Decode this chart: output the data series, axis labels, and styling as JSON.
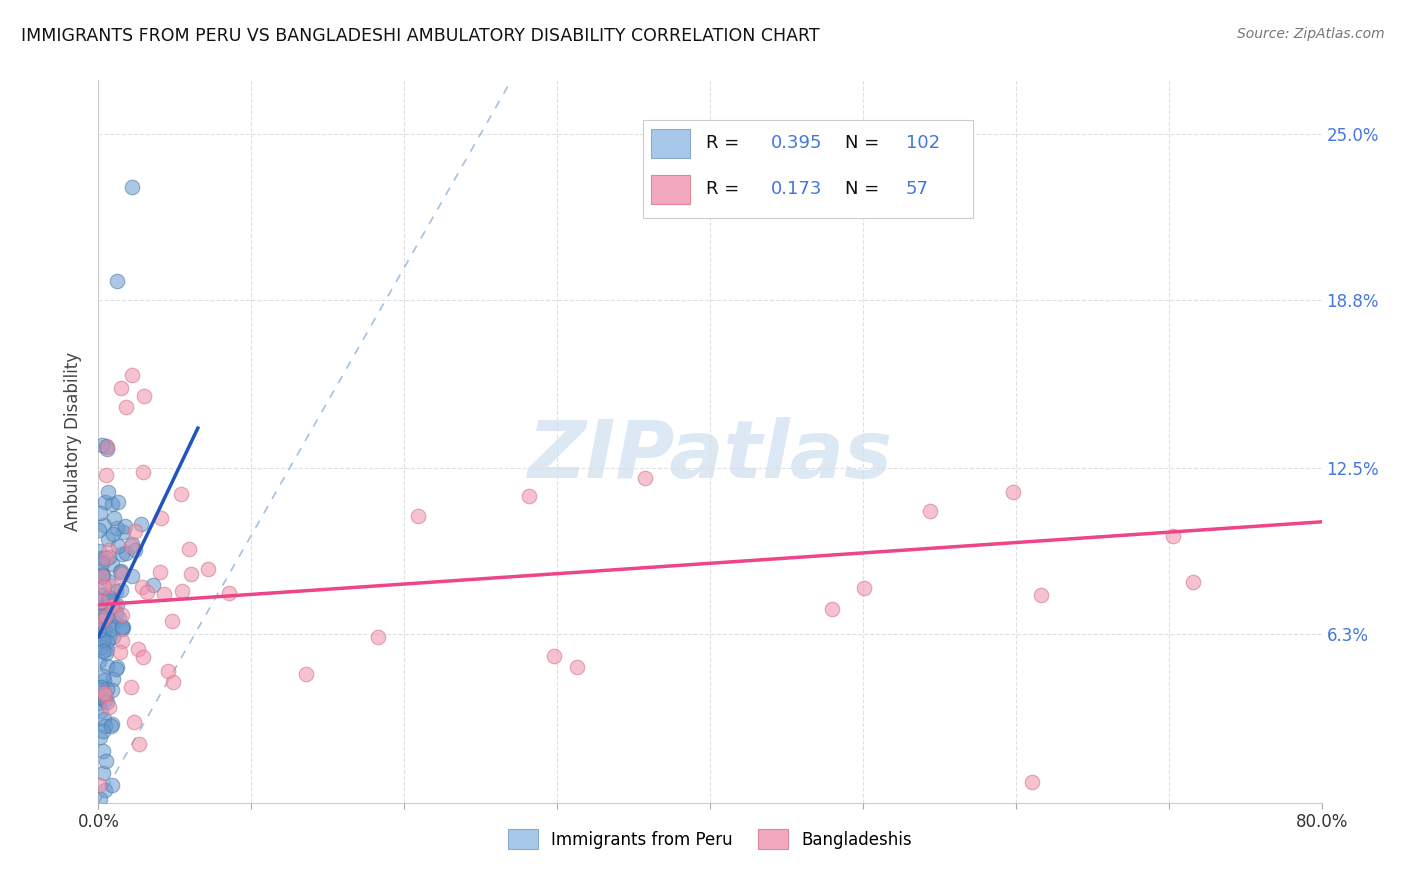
{
  "title": "IMMIGRANTS FROM PERU VS BANGLADESHI AMBULATORY DISABILITY CORRELATION CHART",
  "source": "Source: ZipAtlas.com",
  "ylabel": "Ambulatory Disability",
  "legend_1_label": "Immigrants from Peru",
  "legend_1_color": "#a8c8ea",
  "legend_2_label": "Bangladeshis",
  "legend_2_color": "#f4a8c0",
  "r1": 0.395,
  "n1": 102,
  "r2": 0.173,
  "n2": 57,
  "text_color": "#1a1a2e",
  "rv_color": "#4477dd",
  "nv_color": "#dd2222",
  "scatter_peru_color": "#6699cc",
  "scatter_peru_edge": "#4477aa",
  "scatter_bang_color": "#f090a8",
  "scatter_bang_edge": "#d06880",
  "trendline_peru_color": "#2255bb",
  "trendline_bang_color": "#ee4488",
  "diagonal_color": "#99bbdd",
  "watermark_color": "#dde8f5",
  "background_color": "#ffffff",
  "grid_color": "#dddddd",
  "xmin": 0.0,
  "xmax": 0.8,
  "ymin": 0.0,
  "ymax": 0.27,
  "yticks": [
    0.0,
    0.063,
    0.125,
    0.188,
    0.25
  ],
  "ytick_labels": [
    "",
    "6.3%",
    "12.5%",
    "18.8%",
    "25.0%"
  ],
  "peru_trend_x0": 0.0,
  "peru_trend_y0": 0.062,
  "peru_trend_x1": 0.065,
  "peru_trend_y1": 0.14,
  "bang_trend_x0": 0.0,
  "bang_trend_y0": 0.074,
  "bang_trend_x1": 0.8,
  "bang_trend_y1": 0.105
}
